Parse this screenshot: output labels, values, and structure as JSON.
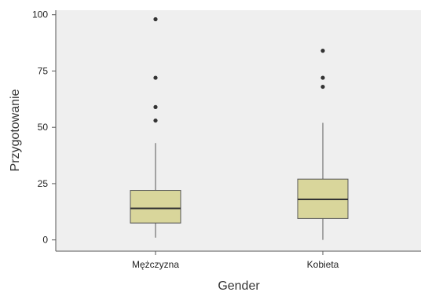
{
  "chart_data": {
    "type": "boxplot",
    "xlabel": "Gender",
    "ylabel": "Przygotowanie",
    "ylim": [
      -5,
      102
    ],
    "y_ticks": [
      0,
      25,
      50,
      75,
      100
    ],
    "categories": [
      "Mężczyzna",
      "Kobieta"
    ],
    "boxes": [
      {
        "category": "Mężczyzna",
        "min": 1,
        "q1": 7.5,
        "median": 14,
        "q3": 22,
        "max": 43,
        "outliers": [
          53,
          59,
          72,
          98
        ]
      },
      {
        "category": "Kobieta",
        "min": 0,
        "q1": 9.5,
        "median": 18,
        "q3": 27,
        "max": 52,
        "outliers": [
          68,
          72,
          84
        ]
      }
    ],
    "grid": false,
    "colors": {
      "panel": "#efefef",
      "box_fill": "#d9d69b",
      "box_stroke": "#555555",
      "outlier": "#333333",
      "axis": "#555555"
    }
  }
}
